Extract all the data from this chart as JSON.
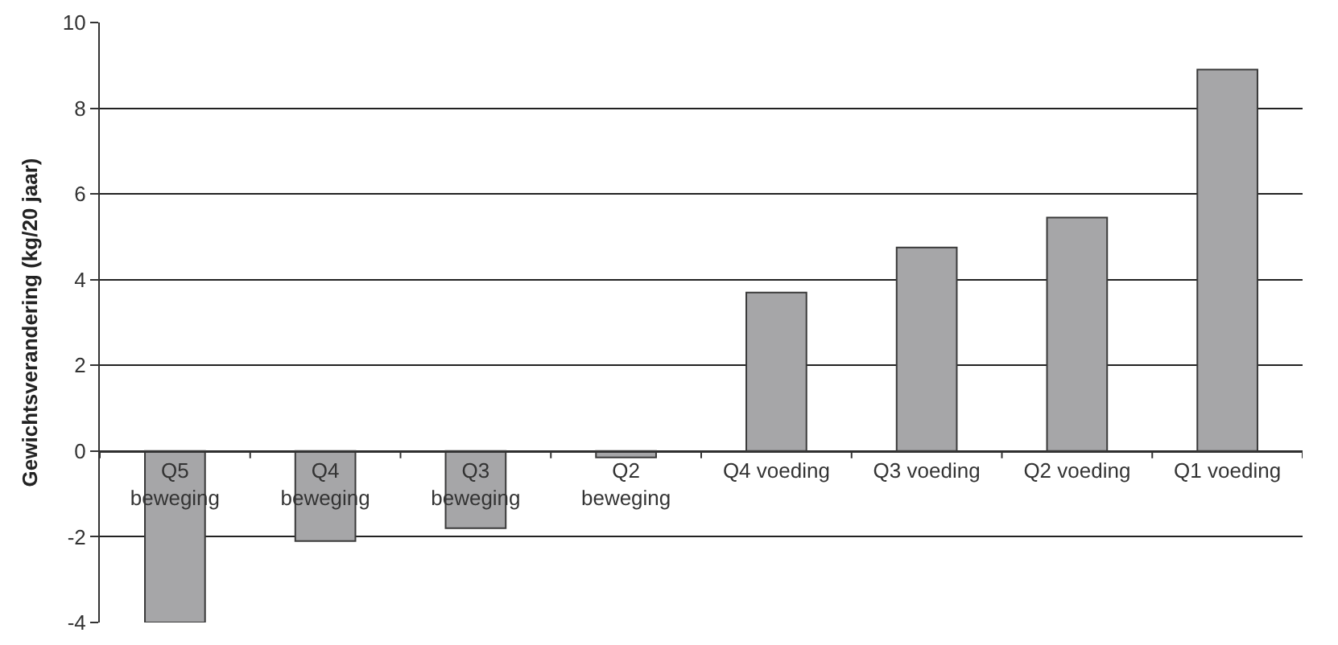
{
  "chart_data": {
    "type": "bar",
    "ylabel": "Gewichtsverandering (kg/20 jaar)",
    "categories": [
      "Q5 beweging",
      "Q4 beweging",
      "Q3 beweging",
      "Q2 beweging",
      "Q4 voeding",
      "Q3 voeding",
      "Q2 voeding",
      "Q1 voeding"
    ],
    "values": [
      -4.0,
      -2.1,
      -1.8,
      -0.15,
      3.7,
      4.75,
      5.45,
      8.9
    ],
    "color": "#a6a6a8",
    "ylim": [
      -4,
      10
    ],
    "yticks": [
      -4,
      -2,
      0,
      2,
      4,
      6,
      8,
      10
    ],
    "grid": "y"
  }
}
